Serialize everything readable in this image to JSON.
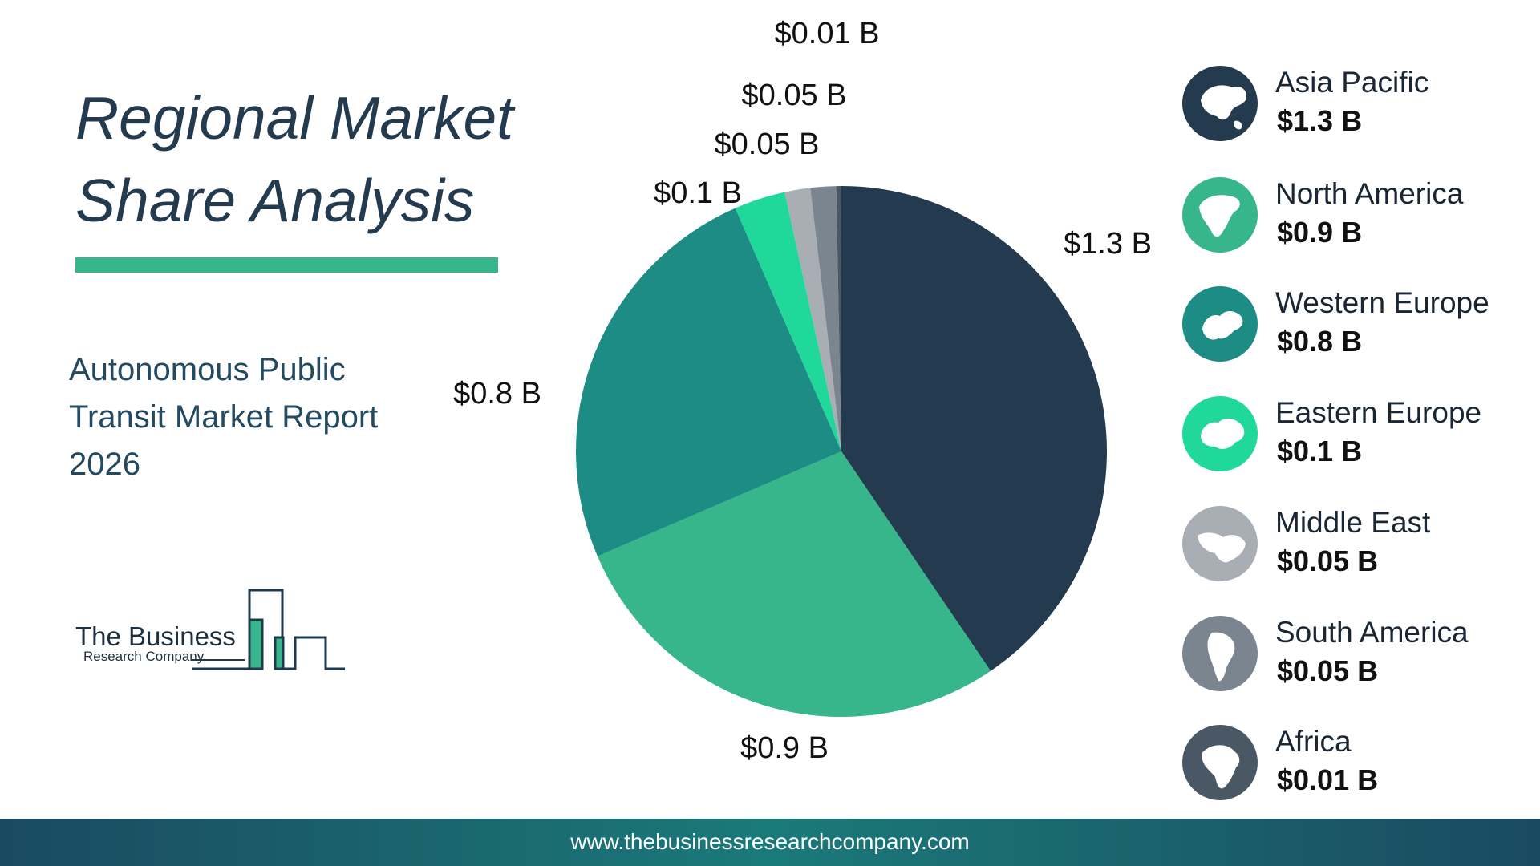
{
  "title_line1": "Regional Market",
  "title_line2": "Share Analysis",
  "subtitle": "Autonomous Public Transit Market Report 2026",
  "logo": {
    "line1": "The Business",
    "line2": "Research Company",
    "colors": {
      "lines": "#1e3a4c",
      "accent": "#36b68a"
    }
  },
  "footer_url": "www.thebusinessresearchcompany.com",
  "colors": {
    "title_bar": "#36b68a",
    "footer": "#1a5a6a"
  },
  "chart_data": {
    "type": "pie",
    "start": "12 o'clock",
    "direction": "clockwise",
    "slices": [
      {
        "name": "Asia Pacific",
        "value": 1.3,
        "label": "$1.3 B",
        "color": "#243a4f",
        "icon": "asia-map-icon"
      },
      {
        "name": "North America",
        "value": 0.9,
        "label": "$0.9 B",
        "color": "#36b68a",
        "icon": "north-america-map-icon"
      },
      {
        "name": "Western Europe",
        "value": 0.8,
        "label": "$0.8 B",
        "color": "#1c8c84",
        "icon": "western-europe-map-icon"
      },
      {
        "name": "Eastern Europe",
        "value": 0.1,
        "label": "$0.1 B",
        "color": "#20d89a",
        "icon": "eastern-europe-map-icon"
      },
      {
        "name": "Middle East",
        "value": 0.05,
        "label": "$0.05 B",
        "color": "#a9adb4",
        "icon": "middle-east-map-icon"
      },
      {
        "name": "South America",
        "value": 0.05,
        "label": "$0.05 B",
        "color": "#7b8590",
        "icon": "south-america-map-icon"
      },
      {
        "name": "Africa",
        "value": 0.01,
        "label": "$0.01 B",
        "color": "#4a5866",
        "icon": "africa-map-icon"
      }
    ]
  }
}
